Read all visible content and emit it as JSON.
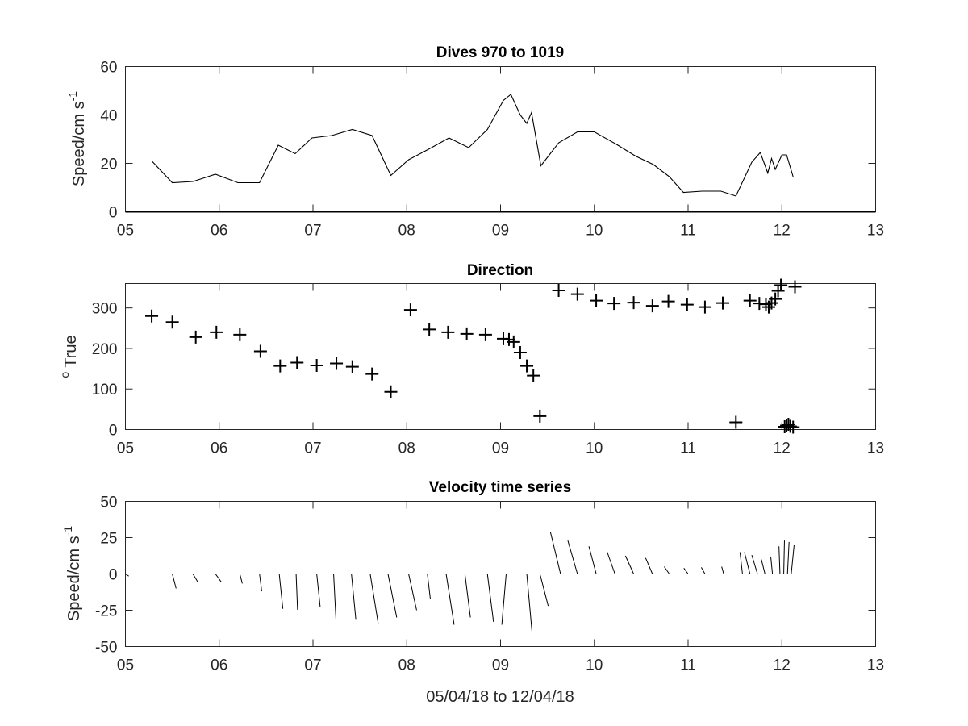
{
  "chart_data": [
    {
      "type": "line",
      "title": "Dives 970 to 1019",
      "ylabel": "Speed/cm s",
      "ylabel_superscript": "-1",
      "xlim": [
        5,
        13
      ],
      "ylim": [
        0,
        60
      ],
      "xticks": [
        "05",
        "06",
        "07",
        "08",
        "09",
        "10",
        "11",
        "12",
        "13"
      ],
      "yticks": [
        "0",
        "20",
        "40",
        "60"
      ],
      "series": [
        {
          "x": [
            5.28,
            5.5,
            5.72,
            5.96,
            6.2,
            6.43,
            6.63,
            6.81,
            6.99,
            7.2,
            7.42,
            7.63,
            7.83,
            8.02,
            8.24,
            8.45,
            8.66,
            8.86,
            9.03,
            9.11,
            9.21,
            9.28,
            9.33,
            9.43,
            9.62,
            9.82,
            10.0,
            10.23,
            10.44,
            10.63,
            10.8,
            10.95,
            11.15,
            11.35,
            11.51,
            11.68,
            11.77,
            11.85,
            11.89,
            11.93,
            12.0,
            12.05,
            12.12
          ],
          "y": [
            21,
            12,
            12.5,
            15.5,
            12,
            12,
            27.5,
            24,
            30.5,
            31.5,
            34,
            31.5,
            15,
            21.5,
            26,
            30.5,
            26.5,
            34,
            46,
            48.5,
            40,
            36.5,
            41,
            19,
            28.5,
            33,
            33,
            28,
            23,
            19.5,
            14.5,
            8,
            8.5,
            8.5,
            6.5,
            20.5,
            24.5,
            16,
            22,
            17.5,
            23.5,
            23.5,
            14.5
          ]
        }
      ]
    },
    {
      "type": "scatter",
      "title": "Direction",
      "ylabel": "True",
      "ylabel_superscript": "o",
      "xlim": [
        5,
        13
      ],
      "ylim": [
        0,
        360
      ],
      "xticks": [
        "05",
        "06",
        "07",
        "08",
        "09",
        "10",
        "11",
        "12",
        "13"
      ],
      "yticks": [
        "0",
        "100",
        "200",
        "300"
      ],
      "marker": "+",
      "series": [
        {
          "x": [
            5.28,
            5.5,
            5.75,
            5.97,
            6.22,
            6.44,
            6.65,
            6.83,
            7.04,
            7.25,
            7.42,
            7.63,
            7.83,
            8.04,
            8.24,
            8.44,
            8.64,
            8.84,
            9.03,
            9.09,
            9.14,
            9.21,
            9.28,
            9.35,
            9.42,
            9.62,
            9.82,
            10.02,
            10.21,
            10.42,
            10.62,
            10.79,
            10.99,
            11.18,
            11.37,
            11.51,
            11.66,
            11.76,
            11.83,
            11.86,
            11.89,
            11.93,
            11.96,
            11.99,
            12.03,
            12.05,
            12.07,
            12.09,
            12.12,
            12.14
          ],
          "y": [
            280,
            265,
            228,
            240,
            234,
            193,
            157,
            165,
            158,
            163,
            155,
            137,
            93,
            295,
            247,
            240,
            236,
            234,
            224,
            222,
            216,
            190,
            157,
            133,
            33,
            343,
            334,
            318,
            311,
            313,
            305,
            316,
            308,
            302,
            312,
            18,
            318,
            311,
            309,
            302,
            312,
            322,
            342,
            356,
            7,
            10,
            13,
            8,
            6,
            352
          ]
        }
      ]
    },
    {
      "type": "line",
      "title": "Velocity time series",
      "ylabel": "Speed/cm s",
      "ylabel_superscript": "-1",
      "xlabel": "05/04/18 to 12/04/18",
      "xlim": [
        5,
        13
      ],
      "ylim": [
        -50,
        50
      ],
      "xticks": [
        "05",
        "06",
        "07",
        "08",
        "09",
        "10",
        "11",
        "12",
        "13"
      ],
      "yticks": [
        "-50",
        "-25",
        "0",
        "25",
        "50"
      ],
      "series": [
        {
          "name": "stick vectors",
          "t": [
            5.0,
            5.5,
            5.72,
            5.96,
            6.22,
            6.43,
            6.64,
            6.82,
            7.04,
            7.22,
            7.41,
            7.61,
            7.8,
            8.02,
            8.22,
            8.42,
            8.62,
            8.86,
            9.06,
            9.28,
            9.42,
            9.64,
            9.82,
            10.02,
            10.22,
            10.42,
            10.62,
            10.8,
            11.0,
            11.18,
            11.38,
            11.58,
            11.66,
            11.74,
            11.82,
            11.9,
            11.98,
            12.02,
            12.06,
            12.1
          ],
          "u": [
            2.3,
            2.6,
            3.6,
            4.0,
            1.7,
            1.5,
            2.5,
            1.0,
            2.4,
            1.6,
            3.0,
            5.5,
            6.0,
            5.5,
            2.0,
            5.5,
            3.8,
            4.2,
            -3.0,
            3.5,
            5.7,
            -7.0,
            -6.6,
            -5.0,
            -5.3,
            -5.7,
            -4.7,
            -3.5,
            -2.9,
            -2.5,
            -1.4,
            -1.7,
            -3.8,
            -3.9,
            -2.5,
            -1.2,
            -0.7,
            0.5,
            1.1,
            2.0
          ],
          "v": [
            -1.5,
            -10.0,
            -6.0,
            -5.5,
            -6.6,
            -12.0,
            -24.0,
            -24.7,
            -23.0,
            -31.0,
            -31.0,
            -34.0,
            -30.0,
            -25.0,
            -17.0,
            -35.0,
            -30.0,
            -33.0,
            -35.0,
            -39.0,
            -22.0,
            29.0,
            23.0,
            19.0,
            15.0,
            12.5,
            11.0,
            5.0,
            4.0,
            4.5,
            5.0,
            15.0,
            15.0,
            13.0,
            10.0,
            12.0,
            19.0,
            23.0,
            22.0,
            20.0
          ]
        }
      ]
    }
  ]
}
